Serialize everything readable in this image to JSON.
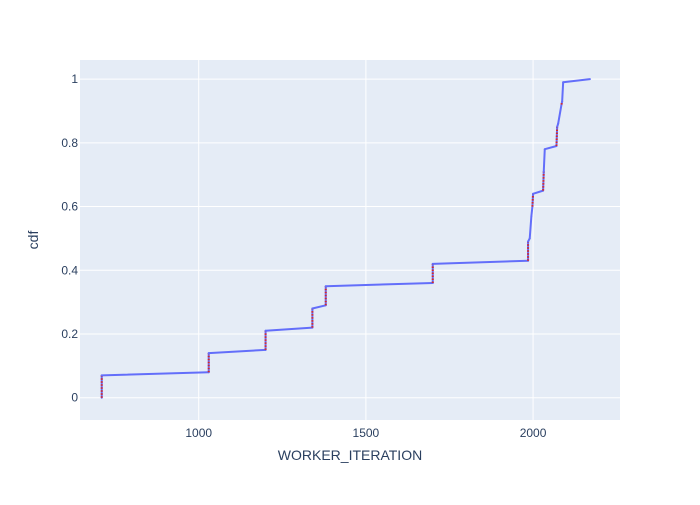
{
  "chart_data": {
    "type": "line",
    "title": "",
    "xlabel": "WORKER_ITERATION",
    "ylabel": "cdf",
    "xlim": [
      645,
      2260
    ],
    "ylim": [
      -0.07,
      1.06
    ],
    "xticks": [
      1000,
      1500,
      2000
    ],
    "xtick_labels": [
      "1000",
      "1500",
      "2000"
    ],
    "yticks": [
      0,
      0.2,
      0.4,
      0.6,
      0.8,
      1
    ],
    "ytick_labels": [
      "0",
      "0.2",
      "0.4",
      "0.6",
      "0.8",
      "1"
    ],
    "grid": true,
    "legend": "none",
    "colors": {
      "plot_bg": "#e5ecf6",
      "grid": "#ffffff",
      "line": "#636efa",
      "steps": "#d62728",
      "text": "#2a3f5f"
    },
    "series": [
      {
        "x": [
          710,
          710,
          1030,
          1030,
          1200,
          1200,
          1340,
          1340,
          1380,
          1380,
          1700,
          1700,
          1985,
          1985,
          1990,
          1995,
          1998,
          2000,
          2030,
          2032,
          2035,
          2070,
          2072,
          2075,
          2085,
          2087,
          2090,
          2170
        ],
        "y": [
          0.0,
          0.07,
          0.08,
          0.14,
          0.15,
          0.21,
          0.22,
          0.28,
          0.29,
          0.35,
          0.36,
          0.42,
          0.43,
          0.49,
          0.5,
          0.57,
          0.6,
          0.64,
          0.65,
          0.71,
          0.78,
          0.79,
          0.85,
          0.86,
          0.92,
          0.93,
          0.99,
          1.0
        ]
      }
    ]
  }
}
